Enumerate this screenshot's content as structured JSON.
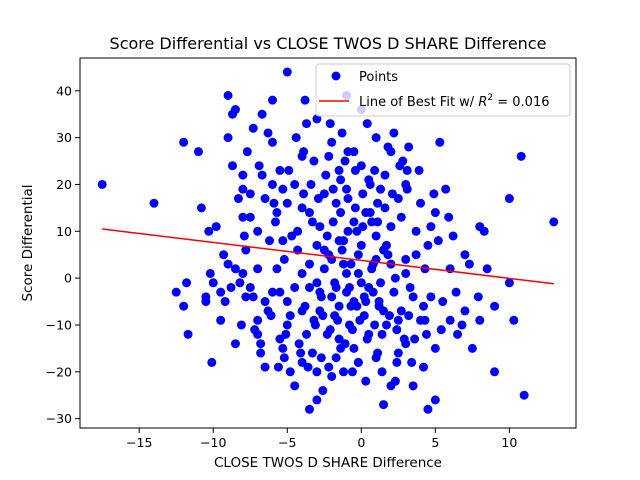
{
  "chart_data": {
    "type": "scatter",
    "title": "Score Differential vs CLOSE TWOS D SHARE Difference",
    "xlabel": "CLOSE TWOS D SHARE Difference",
    "ylabel": "Score Differential",
    "xlim": [
      -19,
      14.5
    ],
    "ylim": [
      -32,
      47
    ],
    "xticks": [
      -15,
      -10,
      -5,
      0,
      5,
      10
    ],
    "yticks": [
      -30,
      -20,
      -10,
      0,
      10,
      20,
      30,
      40
    ],
    "grid": false,
    "legend_position": "top-right",
    "colors": {
      "points": "#0000ff",
      "fit_line": "#ff0000"
    },
    "series": [
      {
        "name": "Points",
        "kind": "scatter",
        "points": [
          [
            -17.5,
            20
          ],
          [
            -14,
            16
          ],
          [
            -12.5,
            -3
          ],
          [
            -12,
            -6
          ],
          [
            -12,
            29
          ],
          [
            -11.8,
            -1
          ],
          [
            -11.7,
            -12
          ],
          [
            -11,
            27
          ],
          [
            -10.8,
            15
          ],
          [
            -10.5,
            -4
          ],
          [
            -10.5,
            -5
          ],
          [
            -10.3,
            10
          ],
          [
            -10.2,
            1
          ],
          [
            -10.1,
            -18
          ],
          [
            -10,
            -1
          ],
          [
            -9.8,
            11
          ],
          [
            -9.5,
            -3
          ],
          [
            -9.3,
            5
          ],
          [
            -9.2,
            -5
          ],
          [
            -9,
            39
          ],
          [
            -9,
            30
          ],
          [
            -9,
            3
          ],
          [
            -8.8,
            -2
          ],
          [
            -8.7,
            35
          ],
          [
            -8.5,
            -14
          ],
          [
            -8.5,
            36
          ],
          [
            -8.5,
            2
          ],
          [
            -8.3,
            17
          ],
          [
            -8.2,
            -1
          ],
          [
            -8,
            22
          ],
          [
            -8,
            13
          ],
          [
            -8,
            19
          ],
          [
            -8,
            1
          ],
          [
            -7.9,
            9
          ],
          [
            -7.8,
            -4
          ],
          [
            -7.8,
            6
          ],
          [
            -7.5,
            -2
          ],
          [
            -7.5,
            18
          ],
          [
            -7.3,
            32
          ],
          [
            -7.2,
            -11
          ],
          [
            -7,
            10
          ],
          [
            -7,
            -9
          ],
          [
            -7,
            2
          ],
          [
            -7,
            -12
          ],
          [
            -6.8,
            -14
          ],
          [
            -6.8,
            -16
          ],
          [
            -6.7,
            35
          ],
          [
            -6.7,
            22
          ],
          [
            -6.5,
            -19
          ],
          [
            -6.5,
            17
          ],
          [
            -6.3,
            -7
          ],
          [
            -6.2,
            8
          ],
          [
            -6,
            20
          ],
          [
            -6,
            38
          ],
          [
            -6,
            29
          ],
          [
            -5.8,
            12
          ],
          [
            -5.7,
            14
          ],
          [
            -5.5,
            -13
          ],
          [
            -5.5,
            23
          ],
          [
            -5.5,
            -3
          ],
          [
            -5.3,
            -15
          ],
          [
            -5.3,
            19
          ],
          [
            -5.2,
            -17
          ],
          [
            -5.2,
            4
          ],
          [
            -5,
            -5
          ],
          [
            -5,
            -10
          ],
          [
            -5,
            16
          ],
          [
            -5,
            44
          ],
          [
            -4.8,
            -20
          ],
          [
            -4.7,
            9
          ],
          [
            -4.5,
            -23
          ],
          [
            -4.5,
            20
          ],
          [
            -4.5,
            -2
          ],
          [
            -4.3,
            6
          ],
          [
            -4.2,
            -14
          ],
          [
            -4,
            15
          ],
          [
            -4,
            -18
          ],
          [
            -4,
            -7
          ],
          [
            -4,
            26
          ],
          [
            -3.8,
            38
          ],
          [
            -3.7,
            33
          ],
          [
            -3.5,
            -2
          ],
          [
            -3.5,
            -28
          ],
          [
            -3.5,
            14
          ],
          [
            -3.3,
            -16
          ],
          [
            -3.2,
            25
          ],
          [
            -3.2,
            -9
          ],
          [
            -3,
            -26
          ],
          [
            -3,
            7
          ],
          [
            -3,
            -20
          ],
          [
            -3,
            34
          ],
          [
            -2.8,
            11
          ],
          [
            -2.7,
            -4
          ],
          [
            -2.5,
            2
          ],
          [
            -2.5,
            18
          ],
          [
            -2.3,
            -12
          ],
          [
            -2.2,
            -19
          ],
          [
            -2,
            -21
          ],
          [
            -2,
            4
          ],
          [
            -2,
            29
          ],
          [
            -1.8,
            -1
          ],
          [
            -1.7,
            16
          ],
          [
            -1.5,
            -6
          ],
          [
            -1.5,
            23
          ],
          [
            -1.5,
            -13
          ],
          [
            -1.3,
            31
          ],
          [
            -1.2,
            -20
          ],
          [
            -1.2,
            8
          ],
          [
            -1,
            39
          ],
          [
            -1,
            -3
          ],
          [
            -1,
            19
          ],
          [
            -0.8,
            -10
          ],
          [
            -0.7,
            3
          ],
          [
            -0.5,
            -15
          ],
          [
            -0.5,
            12
          ],
          [
            -0.5,
            27
          ],
          [
            -0.3,
            -6
          ],
          [
            -0.2,
            -18
          ],
          [
            -0.2,
            5
          ],
          [
            0,
            36
          ],
          [
            0,
            24
          ],
          [
            0,
            -1
          ],
          [
            0.2,
            -8
          ],
          [
            0.3,
            14
          ],
          [
            0.5,
            21
          ],
          [
            0.5,
            -12
          ],
          [
            0.7,
            2
          ],
          [
            0.8,
            -3
          ],
          [
            1,
            30
          ],
          [
            1,
            9
          ],
          [
            1,
            -17
          ],
          [
            1.2,
            -5
          ],
          [
            1.3,
            19
          ],
          [
            1.5,
            -27
          ],
          [
            1.5,
            6
          ],
          [
            1.7,
            -10
          ],
          [
            2,
            27
          ],
          [
            2,
            -23
          ],
          [
            2,
            11
          ],
          [
            2.2,
            31
          ],
          [
            2.3,
            0
          ],
          [
            2.5,
            -16
          ],
          [
            2.5,
            17
          ],
          [
            2.7,
            -7
          ],
          [
            3,
            20
          ],
          [
            3,
            -14
          ],
          [
            3,
            4
          ],
          [
            3.2,
            28
          ],
          [
            3.3,
            -2
          ],
          [
            3.5,
            -23
          ],
          [
            3.7,
            10
          ],
          [
            4,
            -9
          ],
          [
            4,
            16
          ],
          [
            4.2,
            -19
          ],
          [
            4.3,
            2
          ],
          [
            4.5,
            -28
          ],
          [
            4.5,
            7
          ],
          [
            4.7,
            -4
          ],
          [
            5,
            -15
          ],
          [
            5,
            14
          ],
          [
            5,
            -26
          ],
          [
            5.2,
            8
          ],
          [
            5.3,
            29
          ],
          [
            5.5,
            -5
          ],
          [
            5.7,
            19
          ],
          [
            6,
            -9
          ],
          [
            6,
            2
          ],
          [
            6.2,
            9
          ],
          [
            6.5,
            -12
          ],
          [
            7,
            -7
          ],
          [
            7,
            5
          ],
          [
            7.5,
            -15
          ],
          [
            8,
            -9
          ],
          [
            8,
            11
          ],
          [
            8.5,
            2
          ],
          [
            9,
            -20
          ],
          [
            9,
            -6
          ],
          [
            10,
            17
          ],
          [
            10,
            -1
          ],
          [
            10.3,
            -9
          ],
          [
            10.8,
            26
          ],
          [
            11,
            -25
          ],
          [
            13,
            12
          ],
          [
            -6.5,
            -5
          ],
          [
            -6,
            -3
          ],
          [
            -5.7,
            2
          ],
          [
            -5.3,
            8
          ],
          [
            -4.8,
            -8
          ],
          [
            -4.3,
            10
          ],
          [
            -3.8,
            -6
          ],
          [
            -3.3,
            12
          ],
          [
            -2.8,
            -3
          ],
          [
            -2.3,
            9
          ],
          [
            -1.8,
            -8
          ],
          [
            -1.3,
            6
          ],
          [
            -0.8,
            -2
          ],
          [
            -0.3,
            10
          ],
          [
            0.2,
            -4
          ],
          [
            0.7,
            12
          ],
          [
            1.2,
            -6
          ],
          [
            1.7,
            7
          ],
          [
            2.2,
            -3
          ],
          [
            2.7,
            13
          ],
          [
            3.2,
            -8
          ],
          [
            3.7,
            5
          ],
          [
            4.2,
            -6
          ],
          [
            4.7,
            11
          ],
          [
            -4,
            1
          ],
          [
            -3.5,
            3
          ],
          [
            -3,
            -1
          ],
          [
            -2.5,
            6
          ],
          [
            -2,
            -4
          ],
          [
            -1.5,
            8
          ],
          [
            -1,
            1
          ],
          [
            -0.5,
            -5
          ],
          [
            0,
            7
          ],
          [
            0.5,
            -2
          ],
          [
            1,
            4
          ],
          [
            1.5,
            -7
          ],
          [
            2,
            3
          ],
          [
            2.5,
            -9
          ],
          [
            3,
            1
          ],
          [
            3.5,
            -4
          ],
          [
            -3.7,
            -12
          ],
          [
            -3.1,
            -10
          ],
          [
            -2.6,
            -8
          ],
          [
            -2.1,
            -11
          ],
          [
            -1.6,
            -9
          ],
          [
            -1.1,
            -14
          ],
          [
            -0.6,
            -11
          ],
          [
            -0.1,
            -9
          ],
          [
            0.4,
            -13
          ],
          [
            0.9,
            -10
          ],
          [
            1.4,
            -12
          ],
          [
            1.9,
            -8
          ],
          [
            2.4,
            -11
          ],
          [
            2.9,
            -13
          ],
          [
            -3.9,
            18
          ],
          [
            -3.4,
            20
          ],
          [
            -2.9,
            17
          ],
          [
            -2.4,
            22
          ],
          [
            -1.9,
            19
          ],
          [
            -1.4,
            21
          ],
          [
            -0.9,
            17
          ],
          [
            -0.4,
            23
          ],
          [
            0.1,
            18
          ],
          [
            0.6,
            20
          ],
          [
            1.1,
            16
          ],
          [
            1.6,
            22
          ],
          [
            2.1,
            18
          ],
          [
            2.6,
            24
          ],
          [
            3.1,
            19
          ],
          [
            -7.5,
            13
          ],
          [
            -7.3,
            -4
          ],
          [
            -6.9,
            24
          ],
          [
            -6.1,
            -8
          ],
          [
            -5.9,
            16
          ],
          [
            -5.1,
            -12
          ],
          [
            -4.9,
            23
          ],
          [
            -4.1,
            -16
          ],
          [
            -3.9,
            27
          ],
          [
            -2.6,
            -24
          ],
          [
            -2.2,
            26
          ],
          [
            -1.7,
            -17
          ],
          [
            -1.1,
            25
          ],
          [
            -0.6,
            -20
          ],
          [
            0.3,
            -22
          ],
          [
            0.9,
            23
          ],
          [
            1.4,
            -20
          ],
          [
            2.3,
            -22
          ],
          [
            2.8,
            25
          ],
          [
            3.4,
            -18
          ],
          [
            3.9,
            23
          ],
          [
            4.4,
            -12
          ],
          [
            4.9,
            18
          ],
          [
            5.4,
            -11
          ],
          [
            5.9,
            13
          ],
          [
            6.4,
            -3
          ],
          [
            6.8,
            -10
          ],
          [
            7.3,
            3
          ],
          [
            7.9,
            -4
          ],
          [
            8.3,
            10
          ],
          [
            -9.5,
            -9
          ],
          [
            -8.7,
            24
          ],
          [
            -8.1,
            -10
          ],
          [
            -7.7,
            27
          ],
          [
            -6.3,
            31
          ],
          [
            -5.6,
            -19
          ],
          [
            -4.4,
            30
          ],
          [
            -3.6,
            -19
          ],
          [
            -2.7,
            -17
          ],
          [
            -2.1,
            33
          ],
          [
            -1.4,
            -15
          ],
          [
            -0.9,
            27
          ],
          [
            -0.2,
            -18
          ],
          [
            0.4,
            33
          ],
          [
            1.1,
            -16
          ],
          [
            1.8,
            28
          ],
          [
            2.4,
            -18
          ],
          [
            3.1,
            23
          ],
          [
            3.6,
            -13
          ],
          [
            4.3,
            -9
          ],
          [
            -2.8,
            -7
          ],
          [
            -2.2,
            5
          ],
          [
            -1.7,
            -2
          ],
          [
            -1.2,
            3
          ],
          [
            -0.7,
            -6
          ],
          [
            -0.2,
            1
          ],
          [
            0.3,
            -5
          ],
          [
            0.8,
            3
          ],
          [
            1.3,
            -1
          ],
          [
            1.8,
            5
          ],
          [
            -1.9,
            12
          ],
          [
            -1.4,
            14
          ],
          [
            -0.9,
            10
          ],
          [
            -0.4,
            15
          ],
          [
            0.1,
            11
          ],
          [
            0.6,
            14
          ],
          [
            1.1,
            12
          ],
          [
            1.6,
            15
          ]
        ]
      },
      {
        "name": "Line of Best Fit w/ R² = 0.016",
        "kind": "line",
        "x": [
          -17.5,
          13
        ],
        "y": [
          10.5,
          -1.2
        ]
      }
    ],
    "legend": {
      "points_label": "Points",
      "line_label_prefix": "Line of Best Fit w/ ",
      "line_label_r": "R",
      "line_label_exp": "2",
      "line_label_suffix": " = 0.016"
    }
  }
}
